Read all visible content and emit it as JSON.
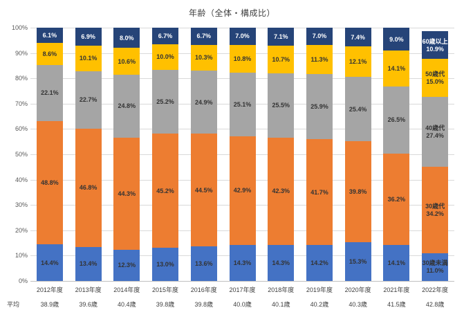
{
  "chart_data": {
    "type": "bar",
    "variant": "stacked-100-percent",
    "title": "年齢（全体・構成比）",
    "categories": [
      "2012年度",
      "2013年度",
      "2014年度",
      "2015年度",
      "2016年度",
      "2017年度",
      "2018年度",
      "2019年度",
      "2020年度",
      "2021年度",
      "2022年度"
    ],
    "series": [
      {
        "name": "30歳未満",
        "color": "#4472C4",
        "label_color": "#333333",
        "values": [
          14.4,
          13.4,
          12.3,
          13.0,
          13.6,
          14.3,
          14.3,
          14.2,
          15.3,
          14.1,
          11.0
        ]
      },
      {
        "name": "30歳代",
        "color": "#ED7D31",
        "label_color": "#333333",
        "values": [
          48.8,
          46.8,
          44.3,
          45.2,
          44.5,
          42.9,
          42.3,
          41.7,
          39.8,
          36.2,
          34.2
        ]
      },
      {
        "name": "40歳代",
        "color": "#A5A5A5",
        "label_color": "#333333",
        "values": [
          22.1,
          22.7,
          24.8,
          25.2,
          24.9,
          25.1,
          25.5,
          25.9,
          25.4,
          26.5,
          27.4
        ]
      },
      {
        "name": "50歳代",
        "color": "#FFC000",
        "label_color": "#333333",
        "values": [
          8.6,
          10.1,
          10.6,
          10.0,
          10.3,
          10.8,
          10.7,
          11.3,
          12.1,
          14.1,
          15.0
        ]
      },
      {
        "name": "60歳以上",
        "color": "#264478",
        "label_color": "#FFFFFF",
        "values": [
          6.1,
          6.9,
          8.0,
          6.7,
          6.7,
          7.0,
          7.1,
          7.0,
          7.4,
          9.0,
          10.9
        ]
      }
    ],
    "y_axis": {
      "min": 0,
      "max": 100,
      "step": 10,
      "tick_suffix": "%",
      "ylim": [
        0,
        100
      ],
      "grid": true
    },
    "value_suffix": "%",
    "last_bar_shows_series_names": true,
    "average_row": {
      "label": "平均",
      "values": [
        "38.9歳",
        "39.6歳",
        "40.4歳",
        "39.8歳",
        "39.8歳",
        "40.0歳",
        "40.1歳",
        "40.2歳",
        "40.3歳",
        "41.5歳",
        "42.8歳"
      ]
    },
    "colors": {
      "grid": "#d9d9d9",
      "axis": "#bfbfbf",
      "text": "#404040"
    }
  }
}
